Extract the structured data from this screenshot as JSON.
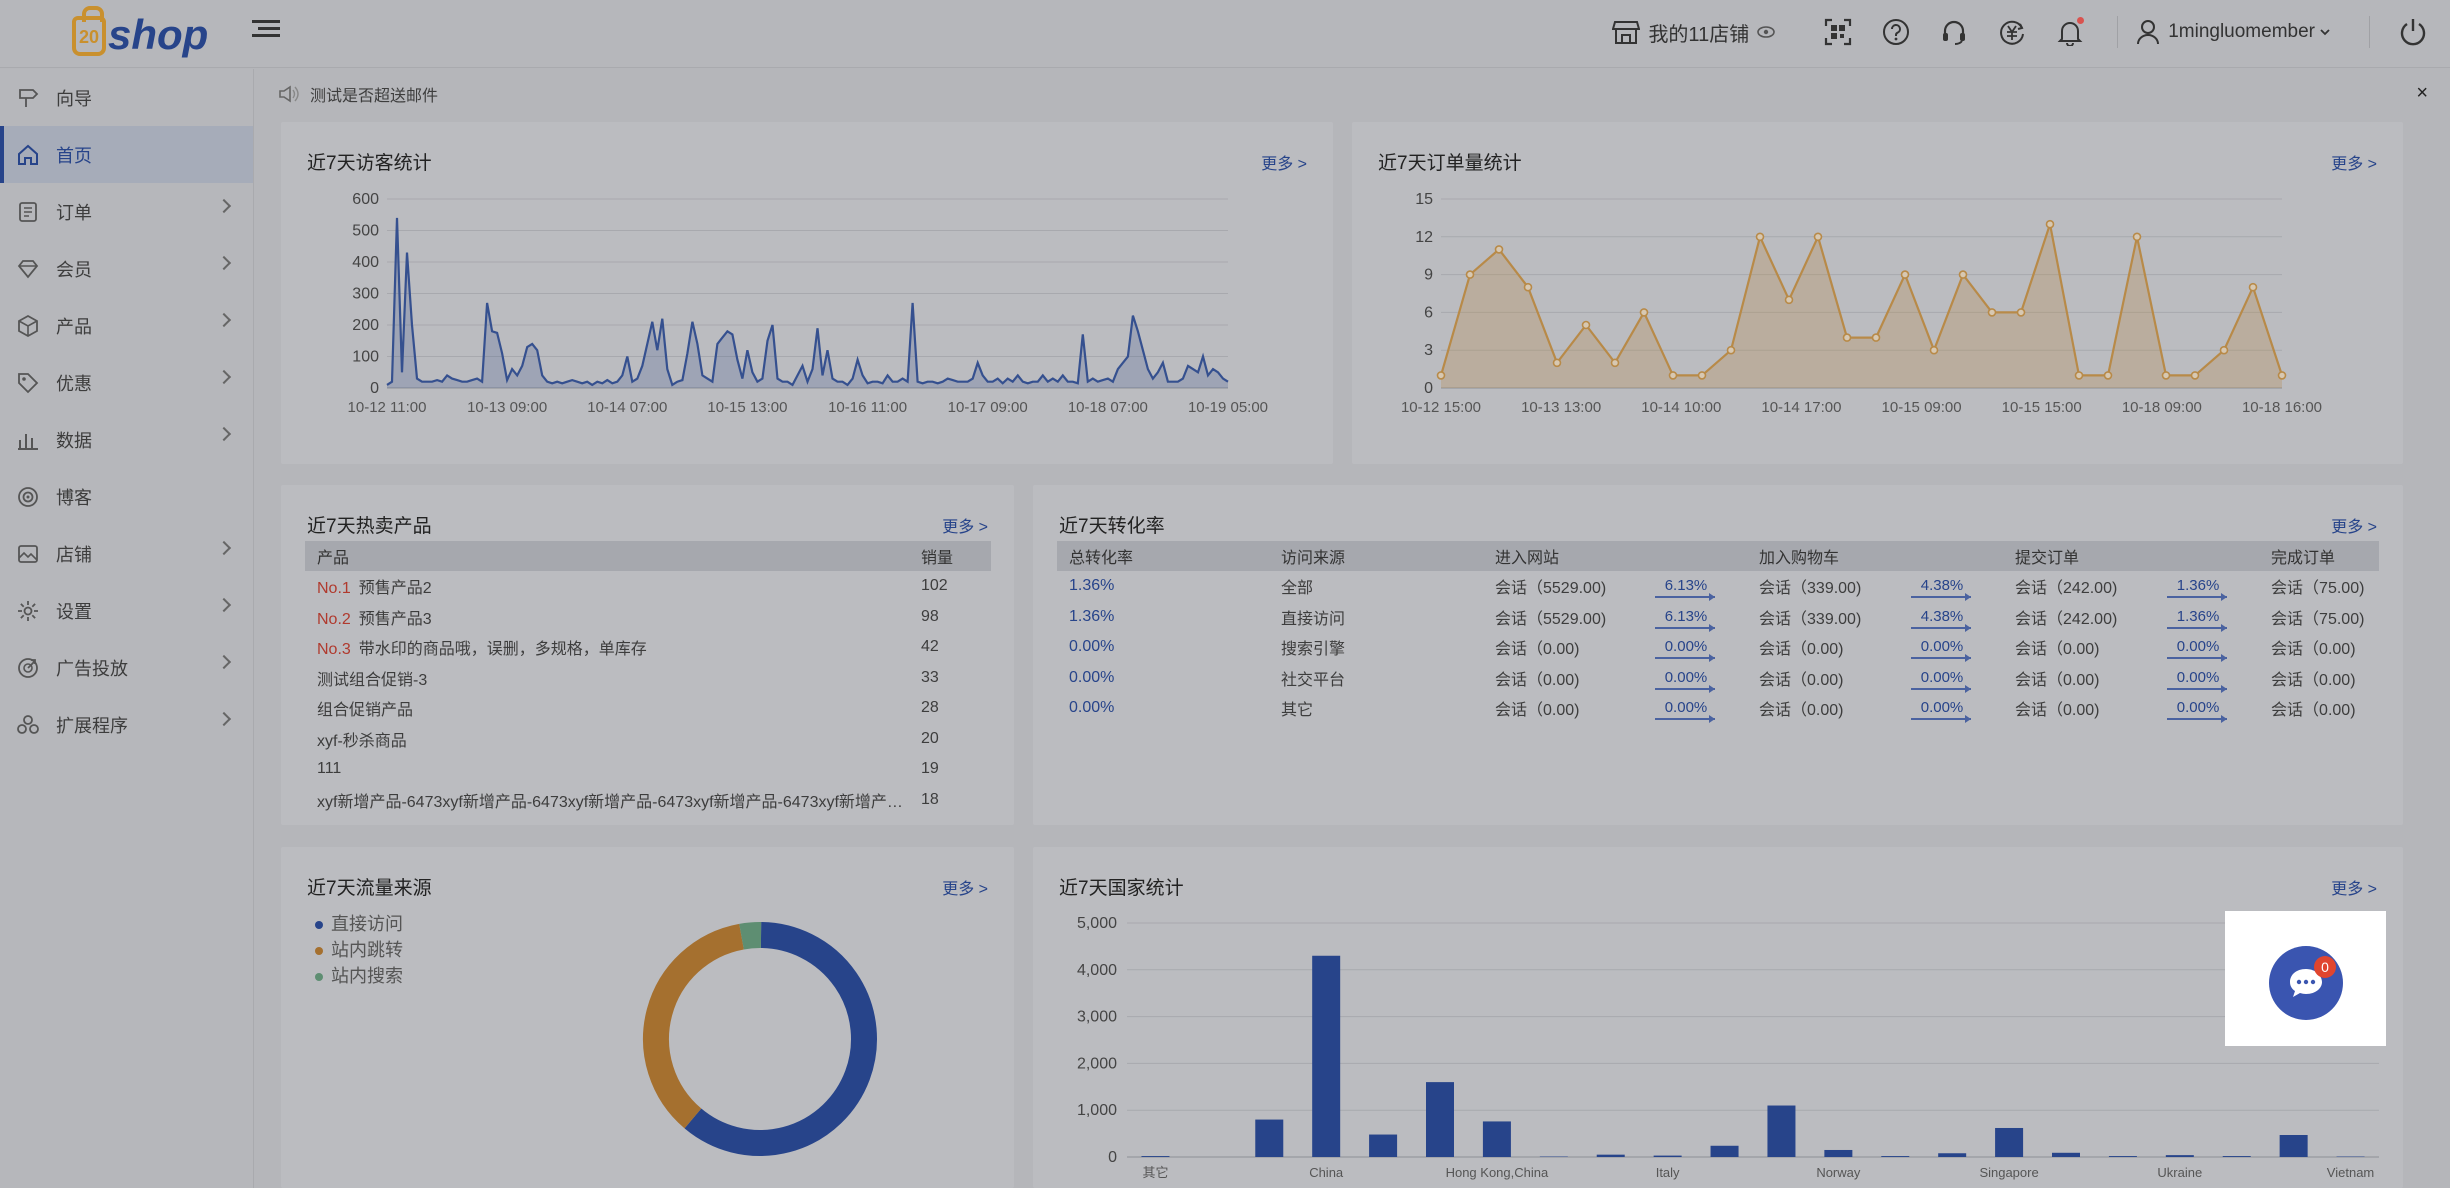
{
  "brand": {
    "logo_text": "shop",
    "logo_mark": "20"
  },
  "topbar": {
    "store_label": "我的11店铺",
    "username": "1mingluomember",
    "icons": [
      "qrcode-icon",
      "help-icon",
      "headset-icon",
      "currency-icon",
      "bell-icon"
    ]
  },
  "sidebar": {
    "items": [
      {
        "label": "向导",
        "icon": "signpost-icon",
        "has_children": false,
        "active": false
      },
      {
        "label": "首页",
        "icon": "home-icon",
        "has_children": false,
        "active": true
      },
      {
        "label": "订单",
        "icon": "order-icon",
        "has_children": true,
        "active": false
      },
      {
        "label": "会员",
        "icon": "member-icon",
        "has_children": true,
        "active": false
      },
      {
        "label": "产品",
        "icon": "box-icon",
        "has_children": true,
        "active": false
      },
      {
        "label": "优惠",
        "icon": "tag-icon",
        "has_children": true,
        "active": false
      },
      {
        "label": "数据",
        "icon": "bar-chart-icon",
        "has_children": true,
        "active": false
      },
      {
        "label": "博客",
        "icon": "target-icon",
        "has_children": false,
        "active": false
      },
      {
        "label": "店铺",
        "icon": "store-image-icon",
        "has_children": true,
        "active": false
      },
      {
        "label": "设置",
        "icon": "gear-icon",
        "has_children": true,
        "active": false
      },
      {
        "label": "广告投放",
        "icon": "ad-icon",
        "has_children": true,
        "active": false
      },
      {
        "label": "扩展程序",
        "icon": "apps-icon",
        "has_children": true,
        "active": false
      }
    ]
  },
  "notice": {
    "text": "测试是否超送邮件",
    "close": "×"
  },
  "more_label": "更多 >",
  "visitors": {
    "title": "近7天访客统计",
    "chart_data": {
      "type": "area",
      "ylim": [
        0,
        600
      ],
      "yticks": [
        "0",
        "100",
        "200",
        "300",
        "400",
        "500",
        "600"
      ],
      "xticks": [
        "10-12 11:00",
        "10-13 09:00",
        "10-14 07:00",
        "10-15 13:00",
        "10-16 11:00",
        "10-17 09:00",
        "10-18 07:00",
        "10-19 05:00"
      ],
      "values": [
        10,
        20,
        540,
        50,
        430,
        200,
        30,
        20,
        20,
        20,
        25,
        20,
        40,
        30,
        25,
        20,
        20,
        25,
        30,
        20,
        270,
        180,
        175,
        110,
        25,
        60,
        40,
        70,
        130,
        140,
        120,
        40,
        20,
        15,
        20,
        15,
        20,
        25,
        20,
        15,
        20,
        10,
        20,
        15,
        25,
        15,
        20,
        40,
        100,
        20,
        30,
        70,
        140,
        210,
        120,
        220,
        60,
        10,
        20,
        25,
        110,
        210,
        140,
        40,
        30,
        20,
        140,
        160,
        180,
        170,
        90,
        30,
        120,
        50,
        20,
        30,
        150,
        200,
        30,
        20,
        20,
        10,
        40,
        70,
        20,
        60,
        190,
        40,
        120,
        30,
        20,
        20,
        10,
        30,
        90,
        40,
        15,
        20,
        20,
        15,
        40,
        20,
        20,
        30,
        20,
        270,
        20,
        15,
        20,
        20,
        15,
        20,
        30,
        25,
        20,
        20,
        20,
        30,
        80,
        40,
        20,
        20,
        30,
        15,
        30,
        20,
        40,
        20,
        15,
        20,
        20,
        40,
        20,
        30,
        20,
        40,
        20,
        20,
        15,
        170,
        20,
        30,
        20,
        25,
        30,
        20,
        60,
        80,
        100,
        230,
        180,
        120,
        60,
        30,
        50,
        80,
        20,
        20,
        20,
        30,
        70,
        60,
        50,
        100,
        40,
        60,
        50,
        30,
        20
      ]
    }
  },
  "orders": {
    "title": "近7天订单量统计",
    "chart_data": {
      "type": "area",
      "ylim": [
        0,
        15
      ],
      "yticks": [
        "0",
        "3",
        "6",
        "9",
        "12",
        "15"
      ],
      "xticks": [
        "10-12 15:00",
        "10-13 13:00",
        "10-14 10:00",
        "10-14 17:00",
        "10-15 09:00",
        "10-15 15:00",
        "10-18 09:00",
        "10-18 16:00"
      ],
      "values": [
        1,
        9,
        11,
        8,
        2,
        5,
        2,
        6,
        1,
        1,
        3,
        12,
        7,
        12,
        4,
        4,
        9,
        3,
        9,
        6,
        6,
        13,
        1,
        1,
        12,
        1,
        1,
        3,
        8,
        1
      ]
    }
  },
  "hot_products": {
    "title": "近7天热卖产品",
    "headers": [
      "产品",
      "销量"
    ],
    "rows": [
      {
        "rank": "No.1",
        "name": "预售产品2",
        "sales": "102"
      },
      {
        "rank": "No.2",
        "name": "预售产品3",
        "sales": "98"
      },
      {
        "rank": "No.3",
        "name": "带水印的商品哦，误删，多规格，单库存",
        "sales": "42"
      },
      {
        "rank": "",
        "name": "测试组合促销-3",
        "sales": "33"
      },
      {
        "rank": "",
        "name": "组合促销产品",
        "sales": "28"
      },
      {
        "rank": "",
        "name": "xyf-秒杀商品",
        "sales": "20"
      },
      {
        "rank": "",
        "name": "111",
        "sales": "19"
      },
      {
        "rank": "",
        "name": "xyf新增产品-6473xyf新增产品-6473xyf新增产品-6473xyf新增产品-6473xyf新增产…",
        "sales": "18"
      }
    ]
  },
  "conversion": {
    "title": "近7天转化率",
    "headers": [
      "总转化率",
      "访问来源",
      "进入网站",
      "加入购物车",
      "提交订单",
      "完成订单"
    ],
    "rows": [
      {
        "total": "1.36%",
        "source": "全部",
        "enter": "会话（5529.00)",
        "r1": "6.13%",
        "cart": "会话（339.00)",
        "r2": "4.38%",
        "submit": "会话（242.00)",
        "r3": "1.36%",
        "done": "会话（75.00)"
      },
      {
        "total": "1.36%",
        "source": "直接访问",
        "enter": "会话（5529.00)",
        "r1": "6.13%",
        "cart": "会话（339.00)",
        "r2": "4.38%",
        "submit": "会话（242.00)",
        "r3": "1.36%",
        "done": "会话（75.00)"
      },
      {
        "total": "0.00%",
        "source": "搜索引擎",
        "enter": "会话（0.00)",
        "r1": "0.00%",
        "cart": "会话（0.00)",
        "r2": "0.00%",
        "submit": "会话（0.00)",
        "r3": "0.00%",
        "done": "会话（0.00)"
      },
      {
        "total": "0.00%",
        "source": "社交平台",
        "enter": "会话（0.00)",
        "r1": "0.00%",
        "cart": "会话（0.00)",
        "r2": "0.00%",
        "submit": "会话（0.00)",
        "r3": "0.00%",
        "done": "会话（0.00)"
      },
      {
        "total": "0.00%",
        "source": "其它",
        "enter": "会话（0.00)",
        "r1": "0.00%",
        "cart": "会话（0.00)",
        "r2": "0.00%",
        "submit": "会话（0.00)",
        "r3": "0.00%",
        "done": "会话（0.00)"
      }
    ]
  },
  "traffic": {
    "title": "近7天流量来源",
    "chart_data": {
      "type": "pie",
      "labels": [
        "直接访问",
        "站内跳转",
        "站内搜索"
      ],
      "values": [
        61,
        36,
        3
      ],
      "colors": [
        "#27448a",
        "#a5702f",
        "#5e8e72"
      ]
    }
  },
  "country": {
    "title": "近7天国家统计",
    "chart_data": {
      "type": "bar",
      "ylim": [
        0,
        5000
      ],
      "yticks": [
        "0",
        "1,000",
        "2,000",
        "3,000",
        "4,000",
        "5,000"
      ],
      "xticks": [
        "其它",
        "China",
        "Hong Kong,China",
        "Italy",
        "Norway",
        "Singapore",
        "Ukraine",
        "Vietnam"
      ],
      "values": [
        20,
        0,
        800,
        4300,
        480,
        1600,
        760,
        10,
        50,
        30,
        240,
        1100,
        150,
        20,
        80,
        620,
        90,
        20,
        40,
        20,
        470,
        10
      ]
    }
  },
  "chat": {
    "badge": "0"
  }
}
